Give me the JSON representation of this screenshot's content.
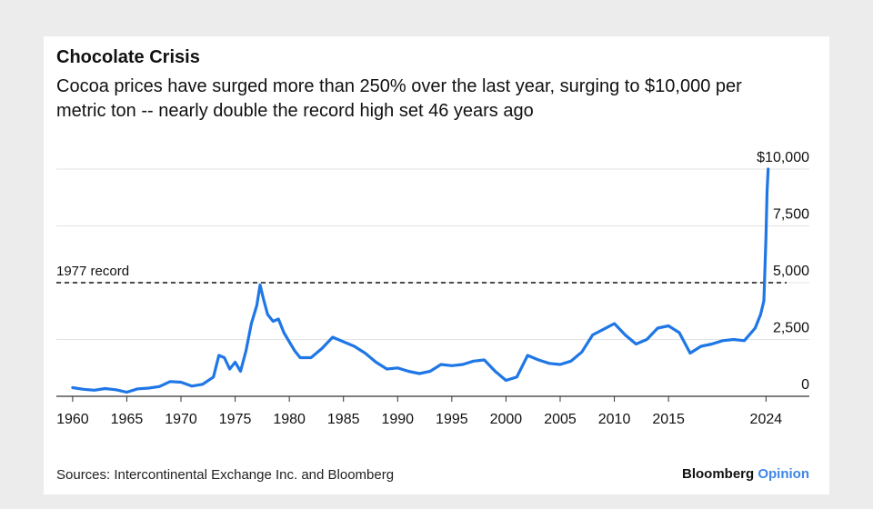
{
  "header": {
    "title": "Chocolate Crisis",
    "subtitle": "Cocoa prices have surged more than 250% over the last year, surging to $10,000 per metric ton -- nearly double the record high set 46 years ago"
  },
  "footer": {
    "source": "Sources: Intercontinental Exchange Inc. and Bloomberg",
    "brand_main": "Bloomberg",
    "brand_accent": "Opinion"
  },
  "colors": {
    "line": "#1f77e6",
    "brand_accent": "#3e86e6",
    "grid": "#e3e3e3"
  },
  "chart_data": {
    "type": "line",
    "title": "Chocolate Crisis",
    "xlabel": "",
    "ylabel": "",
    "xlim": [
      1958.5,
      2028
    ],
    "ylim": [
      0,
      10000
    ],
    "x_ticks": [
      1960,
      1965,
      1970,
      1975,
      1980,
      1985,
      1990,
      1995,
      2000,
      2005,
      2010,
      2015,
      2024
    ],
    "y_ticks": [
      {
        "value": 0,
        "label": "0"
      },
      {
        "value": 2500,
        "label": "2,500"
      },
      {
        "value": 5000,
        "label": "5,000"
      },
      {
        "value": 7500,
        "label": "7,500"
      },
      {
        "value": 10000,
        "label": "$10,000"
      }
    ],
    "grid": true,
    "reference_line": {
      "value": 5000,
      "label": "1977 record",
      "style": "dashed"
    },
    "series": [
      {
        "name": "",
        "x": [
          1960,
          1961,
          1962,
          1963,
          1964,
          1965,
          1966,
          1967,
          1968,
          1969,
          1970,
          1971,
          1972,
          1973,
          1973.5,
          1974,
          1974.5,
          1975,
          1975.5,
          1976,
          1976.5,
          1977,
          1977.3,
          1977.6,
          1978,
          1978.5,
          1979,
          1979.5,
          1980,
          1980.5,
          1981,
          1982,
          1983,
          1984,
          1984.5,
          1985,
          1986,
          1987,
          1988,
          1989,
          1990,
          1991,
          1992,
          1993,
          1994,
          1995,
          1996,
          1997,
          1998,
          1999,
          2000,
          2001,
          2002,
          2003,
          2004,
          2005,
          2006,
          2007,
          2008,
          2009,
          2010,
          2011,
          2012,
          2013,
          2014,
          2015,
          2016,
          2017,
          2018,
          2019,
          2020,
          2021,
          2022,
          2023,
          2023.5,
          2023.8,
          2024,
          2024.1,
          2024.2
        ],
        "values": [
          380,
          310,
          270,
          340,
          290,
          180,
          330,
          360,
          430,
          650,
          620,
          450,
          530,
          850,
          1800,
          1700,
          1200,
          1500,
          1100,
          2000,
          3200,
          4000,
          4900,
          4300,
          3600,
          3300,
          3400,
          2800,
          2400,
          2000,
          1700,
          1700,
          2100,
          2600,
          2500,
          2400,
          2200,
          1900,
          1500,
          1200,
          1250,
          1100,
          1000,
          1100,
          1400,
          1350,
          1400,
          1550,
          1600,
          1100,
          700,
          850,
          1800,
          1600,
          1450,
          1400,
          1550,
          1950,
          2700,
          2950,
          3200,
          2700,
          2300,
          2500,
          3000,
          3100,
          2800,
          1900,
          2200,
          2300,
          2450,
          2500,
          2450,
          3000,
          3600,
          4200,
          7000,
          9000,
          10000
        ]
      }
    ]
  }
}
